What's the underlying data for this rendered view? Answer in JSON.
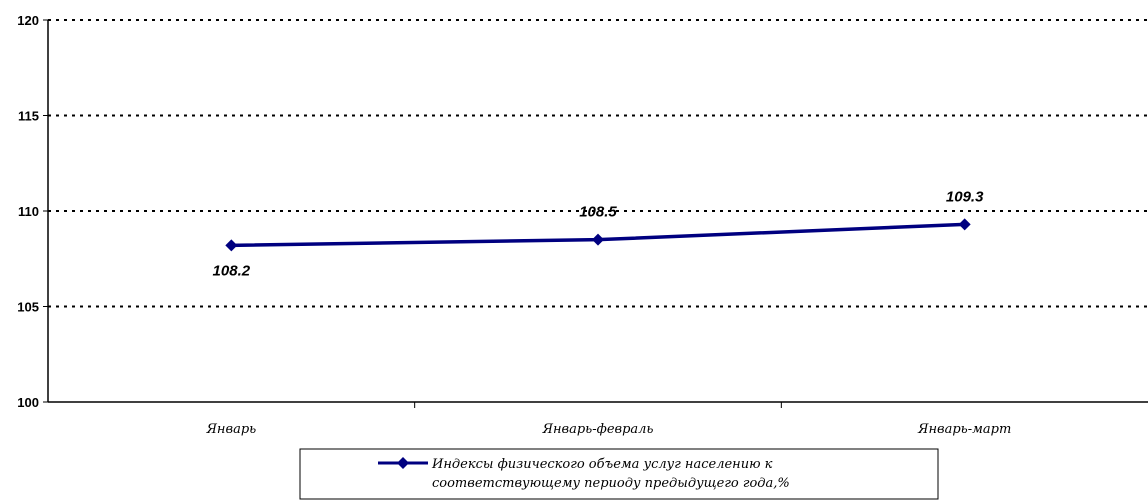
{
  "chart_data": {
    "type": "line",
    "categories": [
      "Январь",
      "Январь-февраль",
      "Январь-март"
    ],
    "series": [
      {
        "name": "Индексы физического объема услуг населению к соответствующему периоду предыдущего года,%",
        "values": [
          108.2,
          108.5,
          109.3
        ],
        "color": "#000080"
      }
    ],
    "data_labels": [
      "108.2",
      "108.5",
      "109.3"
    ],
    "ylim": [
      100,
      120
    ],
    "yticks": [
      100,
      105,
      110,
      115,
      120
    ],
    "grid": "horizontal-dotted",
    "legend_position": "bottom",
    "legend_lines": [
      "Индексы физического объема услуг населению к",
      "соответствующему периоду предыдущего года,%"
    ]
  }
}
